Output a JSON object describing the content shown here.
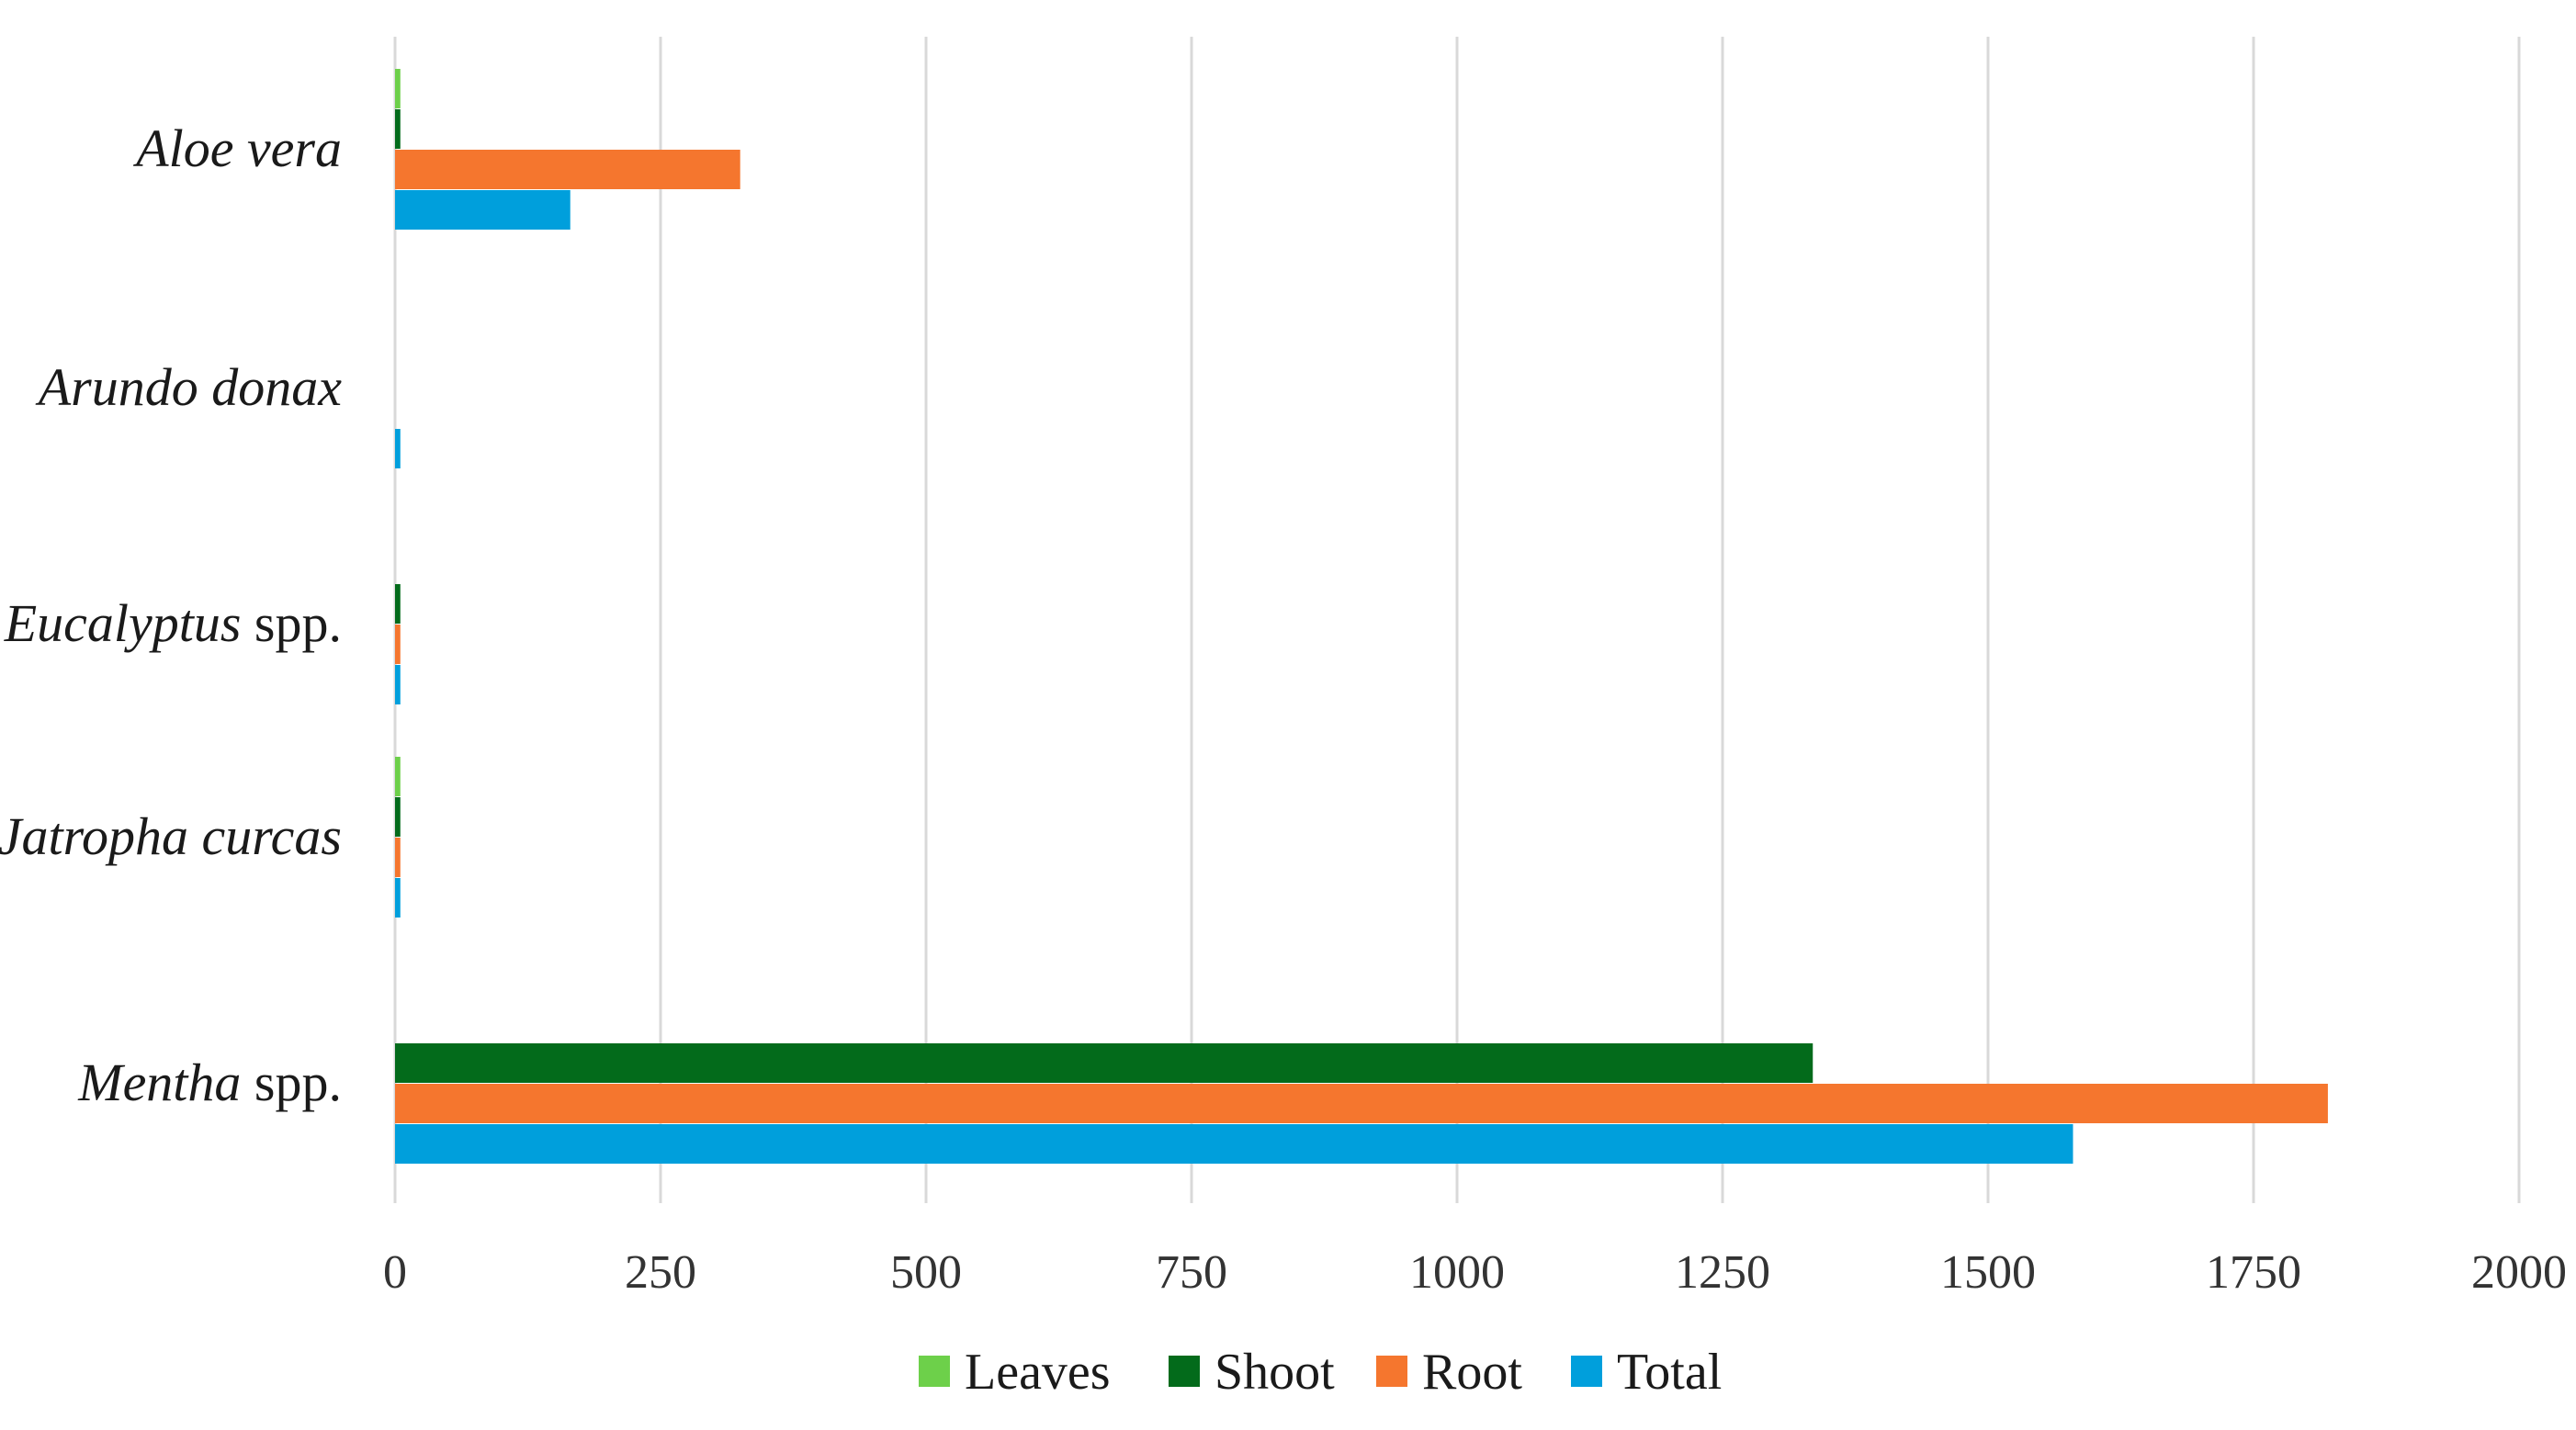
{
  "chart_data": {
    "type": "bar",
    "orientation": "horizontal",
    "categories": [
      {
        "italic": "Aloe vera",
        "suffix": ""
      },
      {
        "italic": "Arundo donax",
        "suffix": ""
      },
      {
        "italic": "Eucalyptus",
        "suffix": " spp."
      },
      {
        "italic": "Jatropha curcas",
        "suffix": ""
      },
      {
        "italic": "Mentha",
        "suffix": " spp."
      }
    ],
    "series": [
      {
        "name": "Leaves",
        "color": "#6dd04a",
        "values": [
          5,
          0,
          0,
          5,
          0
        ]
      },
      {
        "name": "Shoot",
        "color": "#036b1b",
        "values": [
          5,
          0,
          5,
          5,
          1335
        ]
      },
      {
        "name": "Root",
        "color": "#f5762e",
        "values": [
          325,
          0,
          5,
          5,
          1820
        ]
      },
      {
        "name": "Total",
        "color": "#009fdc",
        "values": [
          165,
          5,
          5,
          5,
          1580
        ]
      }
    ],
    "xlim": [
      0,
      2000
    ],
    "xticks": [
      0,
      250,
      500,
      750,
      1000,
      1250,
      1500,
      1750,
      2000
    ],
    "grid": true,
    "legend_position": "bottom",
    "title": "",
    "xlabel": "",
    "ylabel": ""
  }
}
